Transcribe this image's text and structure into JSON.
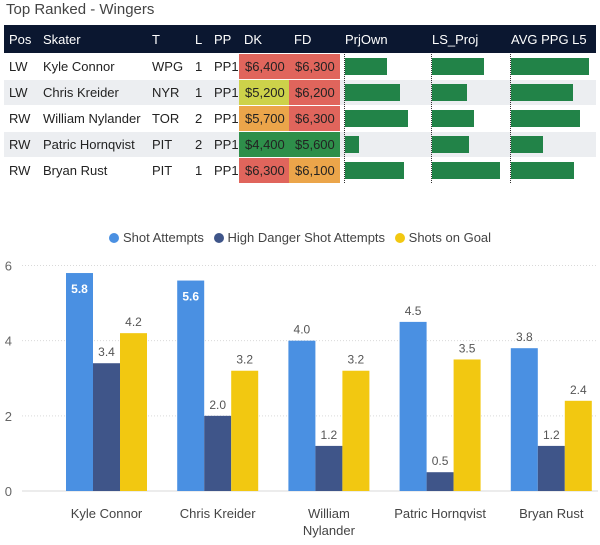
{
  "title": "Top Ranked - Wingers",
  "table": {
    "headers": [
      "Pos",
      "Skater",
      "T",
      "L",
      "PP",
      "DK",
      "FD",
      "PrjOwn",
      "LS_Proj",
      "AVG PPG L5"
    ],
    "rows": [
      {
        "pos": "LW",
        "skater": "Kyle Connor",
        "team": "WPG",
        "line": "1",
        "pp": "PP1",
        "dk": "$6,400",
        "fd": "$6,300",
        "dk_color": "#e0655c",
        "fd_color": "#e0655c",
        "prjown": 0.55,
        "ls_proj": 0.76,
        "avg_ppg": 0.97
      },
      {
        "pos": "LW",
        "skater": "Chris Kreider",
        "team": "NYR",
        "line": "1",
        "pp": "PP1",
        "dk": "$5,200",
        "fd": "$6,200",
        "dk_color": "#cdd24a",
        "fd_color": "#e0655c",
        "prjown": 0.72,
        "ls_proj": 0.52,
        "avg_ppg": 0.77
      },
      {
        "pos": "RW",
        "skater": "William Nylander",
        "team": "TOR",
        "line": "2",
        "pp": "PP1",
        "dk": "$5,700",
        "fd": "$6,300",
        "dk_color": "#eba54a",
        "fd_color": "#e0655c",
        "prjown": 0.83,
        "ls_proj": 0.62,
        "avg_ppg": 0.86
      },
      {
        "pos": "RW",
        "skater": "Patric Hornqvist",
        "team": "PIT",
        "line": "2",
        "pp": "PP1",
        "dk": "$4,400",
        "fd": "$5,600",
        "dk_color": "#2e8f4a",
        "fd_color": "#2e8f4a",
        "prjown": 0.18,
        "ls_proj": 0.54,
        "avg_ppg": 0.4
      },
      {
        "pos": "RW",
        "skater": "Bryan Rust",
        "team": "PIT",
        "line": "1",
        "pp": "PP1",
        "dk": "$6,300",
        "fd": "$6,100",
        "dk_color": "#e0655c",
        "fd_color": "#eba54a",
        "prjown": 0.78,
        "ls_proj": 1.0,
        "avg_ppg": 0.79
      }
    ]
  },
  "chart_data": {
    "type": "bar",
    "categories": [
      [
        "Kyle Connor"
      ],
      [
        "Chris Kreider"
      ],
      [
        "William",
        "Nylander"
      ],
      [
        "Patric Hornqvist"
      ],
      [
        "Bryan Rust"
      ]
    ],
    "series": [
      {
        "name": "Shot Attempts",
        "color": "#4a90e2",
        "values": [
          5.8,
          5.6,
          4.0,
          4.5,
          3.8
        ]
      },
      {
        "name": "High Danger Shot Attempts",
        "color": "#3f5589",
        "values": [
          3.4,
          2.0,
          1.2,
          0.5,
          1.2
        ]
      },
      {
        "name": "Shots on Goal",
        "color": "#f2c811",
        "values": [
          4.2,
          3.2,
          3.2,
          3.5,
          2.4
        ]
      }
    ],
    "value_labels": [
      [
        "5.8",
        "5.6",
        "4.0",
        "4.5",
        "3.8"
      ],
      [
        "3.4",
        "2.0",
        "1.2",
        "0.5",
        "1.2"
      ],
      [
        "4.2",
        "3.2",
        "3.2",
        "3.5",
        "2.4"
      ]
    ],
    "yticks": [
      0,
      2,
      4,
      6
    ],
    "ytick_labels": [
      "0",
      "2",
      "4",
      "6"
    ],
    "ylim": [
      0,
      6.2
    ],
    "legend_position": "top-center",
    "grid": true
  }
}
